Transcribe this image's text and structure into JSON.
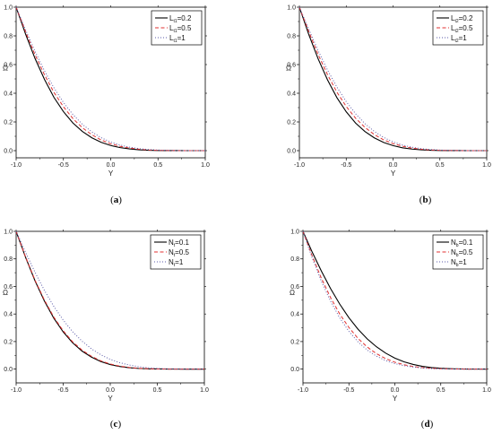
{
  "chart_data": [
    {
      "id": "a",
      "type": "line",
      "caption": {
        "open": "(",
        "letter": "a",
        "close": ")"
      },
      "xlabel": "Y",
      "ylabel": "Ω",
      "xlim": [
        -1.0,
        1.0
      ],
      "ylim": [
        -0.05,
        1.0
      ],
      "xticks": [
        "-1.0",
        "-0.5",
        "0.0",
        "0.5",
        "1.0"
      ],
      "yticks": [
        "0.0",
        "0.2",
        "0.4",
        "0.6",
        "0.8",
        "1.0"
      ],
      "legend_position": "top-right",
      "x": [
        -1.0,
        -0.9,
        -0.8,
        -0.7,
        -0.6,
        -0.5,
        -0.4,
        -0.3,
        -0.2,
        -0.1,
        0.0,
        0.1,
        0.2,
        0.3,
        0.4,
        0.5,
        0.6,
        0.7,
        0.8,
        0.9,
        1.0
      ],
      "series": [
        {
          "base": "L",
          "sub": "t1",
          "rest": "=0.2",
          "style": "solid",
          "color": "#000000",
          "values": [
            1.0,
            0.812,
            0.642,
            0.496,
            0.371,
            0.272,
            0.193,
            0.134,
            0.09,
            0.058,
            0.036,
            0.021,
            0.012,
            0.006,
            0.003,
            0.001,
            0.0005,
            0.0002,
            0.0,
            0.0,
            0.0
          ]
        },
        {
          "base": "L",
          "sub": "t1",
          "rest": "=0.5",
          "style": "dashed",
          "color": "#e03030",
          "values": [
            1.0,
            0.828,
            0.668,
            0.528,
            0.406,
            0.306,
            0.224,
            0.16,
            0.111,
            0.074,
            0.048,
            0.03,
            0.018,
            0.01,
            0.005,
            0.002,
            0.001,
            0.0004,
            0.0001,
            0.0,
            0.0
          ]
        },
        {
          "base": "L",
          "sub": "t1",
          "rest": "=1",
          "style": "dotted",
          "color": "#5a5aa8",
          "values": [
            1.0,
            0.842,
            0.692,
            0.556,
            0.438,
            0.336,
            0.252,
            0.184,
            0.131,
            0.09,
            0.06,
            0.039,
            0.024,
            0.014,
            0.008,
            0.004,
            0.002,
            0.0008,
            0.0002,
            0.0,
            0.0
          ]
        }
      ]
    },
    {
      "id": "b",
      "type": "line",
      "caption": {
        "open": "(",
        "letter": "b",
        "close": ")"
      },
      "xlabel": "Y",
      "ylabel": "Ω",
      "xlim": [
        -1.0,
        1.0
      ],
      "ylim": [
        -0.05,
        1.0
      ],
      "xticks": [
        "-1.0",
        "-0.5",
        "0.0",
        "0.5",
        "1.0"
      ],
      "yticks": [
        "0.0",
        "0.2",
        "0.4",
        "0.6",
        "0.8",
        "1.0"
      ],
      "legend_position": "top-right",
      "x": [
        -1.0,
        -0.9,
        -0.8,
        -0.7,
        -0.6,
        -0.5,
        -0.4,
        -0.3,
        -0.2,
        -0.1,
        0.0,
        0.1,
        0.2,
        0.3,
        0.4,
        0.5,
        0.6,
        0.7,
        0.8,
        0.9,
        1.0
      ],
      "series": [
        {
          "base": "L",
          "sub": "t2",
          "rest": "=0.2",
          "style": "solid",
          "color": "#000000",
          "values": [
            1.0,
            0.81,
            0.64,
            0.494,
            0.37,
            0.271,
            0.192,
            0.133,
            0.089,
            0.057,
            0.035,
            0.02,
            0.011,
            0.006,
            0.003,
            0.001,
            0.0005,
            0.0002,
            0.0,
            0.0,
            0.0
          ]
        },
        {
          "base": "L",
          "sub": "t2",
          "rest": "=0.5",
          "style": "dashed",
          "color": "#e03030",
          "values": [
            1.0,
            0.83,
            0.67,
            0.53,
            0.408,
            0.308,
            0.226,
            0.162,
            0.112,
            0.075,
            0.049,
            0.031,
            0.018,
            0.01,
            0.005,
            0.002,
            0.001,
            0.0004,
            0.0001,
            0.0,
            0.0
          ]
        },
        {
          "base": "L",
          "sub": "t2",
          "rest": "=1",
          "style": "dotted",
          "color": "#5a5aa8",
          "values": [
            1.0,
            0.846,
            0.698,
            0.562,
            0.444,
            0.342,
            0.257,
            0.188,
            0.134,
            0.092,
            0.061,
            0.039,
            0.024,
            0.014,
            0.008,
            0.004,
            0.002,
            0.0008,
            0.0002,
            0.0,
            0.0
          ]
        }
      ]
    },
    {
      "id": "c",
      "type": "line",
      "caption": {
        "open": "(",
        "letter": "c",
        "close": ")"
      },
      "xlabel": "Y",
      "ylabel": "Ω",
      "xlim": [
        -1.0,
        1.0
      ],
      "ylim": [
        -0.1,
        1.0
      ],
      "xticks": [
        "-1.0",
        "-0.5",
        "0.0",
        "0.5",
        "1.0"
      ],
      "yticks": [
        "0.0",
        "0.2",
        "0.4",
        "0.6",
        "0.8",
        "1.0"
      ],
      "legend_position": "top-right",
      "x": [
        -1.0,
        -0.9,
        -0.8,
        -0.7,
        -0.6,
        -0.5,
        -0.4,
        -0.3,
        -0.2,
        -0.1,
        0.0,
        0.1,
        0.2,
        0.3,
        0.4,
        0.5,
        0.6,
        0.7,
        0.8,
        0.9,
        1.0
      ],
      "series": [
        {
          "base": "N",
          "sub": "t",
          "rest": "=0.1",
          "style": "solid",
          "color": "#000000",
          "values": [
            1.0,
            0.812,
            0.642,
            0.495,
            0.37,
            0.27,
            0.191,
            0.131,
            0.087,
            0.055,
            0.033,
            0.019,
            0.01,
            0.005,
            0.002,
            0.001,
            0.0004,
            0.0001,
            0.0,
            0.0,
            0.0
          ]
        },
        {
          "base": "N",
          "sub": "t",
          "rest": "=0.5",
          "style": "dashed",
          "color": "#e03030",
          "values": [
            1.0,
            0.815,
            0.647,
            0.502,
            0.378,
            0.278,
            0.198,
            0.138,
            0.093,
            0.06,
            0.037,
            0.022,
            0.012,
            0.006,
            0.003,
            0.001,
            0.0005,
            0.0002,
            0.0,
            0.0,
            0.0
          ]
        },
        {
          "base": "N",
          "sub": "t",
          "rest": "=1",
          "style": "dotted",
          "color": "#5a5aa8",
          "values": [
            1.0,
            0.848,
            0.704,
            0.572,
            0.456,
            0.356,
            0.272,
            0.203,
            0.147,
            0.104,
            0.071,
            0.047,
            0.03,
            0.018,
            0.01,
            0.005,
            0.002,
            0.001,
            0.0003,
            0.0,
            0.0
          ]
        }
      ]
    },
    {
      "id": "d",
      "type": "line",
      "caption": {
        "open": "(",
        "letter": "d",
        "close": ")"
      },
      "xlabel": "Y",
      "ylabel": "Ω",
      "xlim": [
        -1.0,
        1.0
      ],
      "ylim": [
        -0.1,
        1.0
      ],
      "xticks": [
        "-1.0",
        "-0.5",
        "0.0",
        "0.5",
        "1.0"
      ],
      "yticks": [
        "0.0",
        "0.2",
        "0.4",
        "0.6",
        "0.8",
        "1.0"
      ],
      "legend_position": "top-right",
      "x": [
        -1.0,
        -0.9,
        -0.8,
        -0.7,
        -0.6,
        -0.5,
        -0.4,
        -0.3,
        -0.2,
        -0.1,
        0.0,
        0.1,
        0.2,
        0.3,
        0.4,
        0.5,
        0.6,
        0.7,
        0.8,
        0.9,
        1.0
      ],
      "series": [
        {
          "base": "N",
          "sub": "b",
          "rest": "=0.1",
          "style": "solid",
          "color": "#000000",
          "values": [
            1.0,
            0.85,
            0.712,
            0.585,
            0.472,
            0.373,
            0.289,
            0.219,
            0.162,
            0.116,
            0.08,
            0.053,
            0.034,
            0.02,
            0.011,
            0.006,
            0.003,
            0.001,
            0.0004,
            0.0001,
            0.0
          ]
        },
        {
          "base": "N",
          "sub": "b",
          "rest": "=0.5",
          "style": "dashed",
          "color": "#e03030",
          "values": [
            1.0,
            0.822,
            0.66,
            0.52,
            0.4,
            0.302,
            0.222,
            0.16,
            0.112,
            0.076,
            0.05,
            0.032,
            0.019,
            0.011,
            0.006,
            0.003,
            0.0015,
            0.0006,
            0.0002,
            0.0,
            0.0
          ]
        },
        {
          "base": "N",
          "sub": "b",
          "rest": "=1",
          "style": "dotted",
          "color": "#5a5aa8",
          "values": [
            1.0,
            0.808,
            0.638,
            0.494,
            0.372,
            0.274,
            0.197,
            0.138,
            0.094,
            0.062,
            0.04,
            0.025,
            0.015,
            0.008,
            0.004,
            0.002,
            0.001,
            0.0004,
            0.0001,
            0.0,
            0.0
          ]
        }
      ]
    }
  ]
}
